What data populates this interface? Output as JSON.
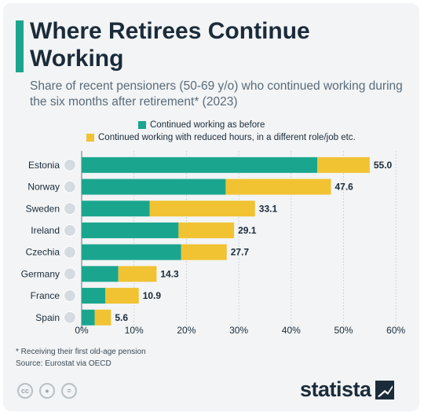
{
  "title": "Where Retirees Continue Working",
  "subtitle": "Share of recent pensioners (50-69 y/o) who continued working during the six months after retirement* (2023)",
  "footnote": "* Receiving their first old-age pension",
  "source": "Source: Eurostat via OECD",
  "brand": "statista",
  "license_icons": [
    "cc-icon",
    "person-icon",
    "equals-icon"
  ],
  "colors": {
    "teal": "#1aa68e",
    "yellow": "#f1c232",
    "text": "#1b2b3a"
  },
  "chart_data": {
    "type": "bar",
    "orientation": "horizontal",
    "stacked": true,
    "categories": [
      "Estonia",
      "Norway",
      "Sweden",
      "Ireland",
      "Czechia",
      "Germany",
      "France",
      "Spain"
    ],
    "flags": [
      "estonia-flag-icon",
      "norway-flag-icon",
      "sweden-flag-icon",
      "ireland-flag-icon",
      "czechia-flag-icon",
      "germany-flag-icon",
      "france-flag-icon",
      "spain-flag-icon"
    ],
    "series": [
      {
        "name": "Continued working as before",
        "color": "#1aa68e",
        "values": [
          45,
          27.5,
          13,
          18.5,
          19,
          7,
          4.5,
          2.5
        ]
      },
      {
        "name": "Continued working with reduced hours, in a different role/job etc.",
        "color": "#f1c232",
        "values": [
          10,
          20.1,
          20.1,
          10.6,
          8.7,
          7.3,
          6.4,
          3.1
        ]
      }
    ],
    "totals": [
      "55.0",
      "47.6",
      "33.1",
      "29.1",
      "27.7",
      "14.3",
      "10.9",
      "5.6"
    ],
    "xlim": [
      0,
      60
    ],
    "xticks": [
      "0%",
      "10%",
      "20%",
      "30%",
      "40%",
      "50%",
      "60%"
    ],
    "grid": true,
    "legend_position": "top"
  }
}
